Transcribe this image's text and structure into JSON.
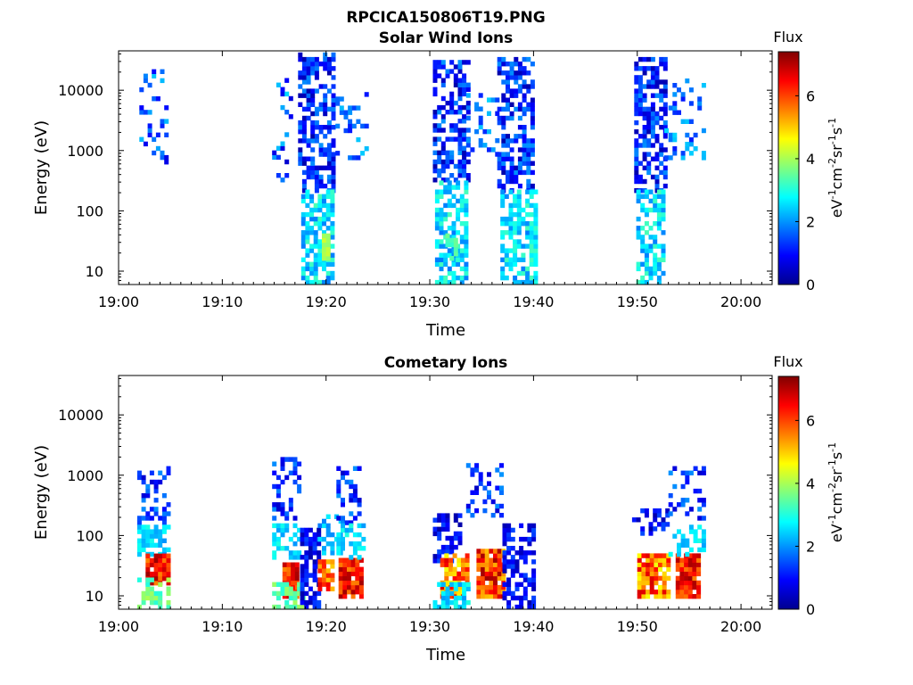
{
  "figure_title": "RPCICA150806T19.PNG",
  "colorbar": {
    "title": "Flux",
    "label_base": "eV",
    "label_parts": [
      "-1",
      "cm",
      "-2",
      "sr",
      "-1",
      "s",
      "-1"
    ],
    "ticks": [
      "0",
      "2",
      "4",
      "6"
    ],
    "range": [
      0,
      7.4
    ],
    "colormap": "jet"
  },
  "chart_data": [
    {
      "type": "heatmap",
      "title": "Solar Wind Ions",
      "xlabel": "Time",
      "ylabel": "Energy (eV)",
      "x_ticks": [
        "19:00",
        "19:10",
        "19:20",
        "19:30",
        "19:40",
        "19:50",
        "20:00"
      ],
      "y_ticks": [
        "10",
        "100",
        "1000",
        "10000"
      ],
      "y_scale": "log",
      "x_range_min": [
        0,
        63
      ],
      "y_range_eV": [
        6,
        45000
      ],
      "clusters": [
        {
          "t": [
            2.0,
            4.6
          ],
          "e": [
            500,
            20000
          ],
          "flux": [
            0.5,
            2.5
          ],
          "density": 0.25
        },
        {
          "t": [
            14.8,
            16.5
          ],
          "e": [
            300,
            15000
          ],
          "flux": [
            0.5,
            2.5
          ],
          "density": 0.25
        },
        {
          "t": [
            17.3,
            20.5
          ],
          "e": [
            200,
            40000
          ],
          "flux": [
            0.3,
            2.0
          ],
          "density": 0.55
        },
        {
          "t": [
            17.6,
            20.5
          ],
          "e": [
            6,
            200
          ],
          "flux": [
            1.8,
            3.3
          ],
          "density": 0.7
        },
        {
          "t": [
            19.6,
            20.2
          ],
          "e": [
            15,
            40
          ],
          "flux": [
            3.8,
            4.3
          ],
          "density": 0.9
        },
        {
          "t": [
            20.5,
            24.0
          ],
          "e": [
            700,
            8000
          ],
          "flux": [
            1.0,
            2.5
          ],
          "density": 0.2
        },
        {
          "t": [
            30.3,
            33.5
          ],
          "e": [
            300,
            30000
          ],
          "flux": [
            0.3,
            2.0
          ],
          "density": 0.55
        },
        {
          "t": [
            30.5,
            33.5
          ],
          "e": [
            6,
            300
          ],
          "flux": [
            1.8,
            3.3
          ],
          "density": 0.65
        },
        {
          "t": [
            31.5,
            32.5
          ],
          "e": [
            15,
            40
          ],
          "flux": [
            3.0,
            3.6
          ],
          "density": 0.6
        },
        {
          "t": [
            33.5,
            36.5
          ],
          "e": [
            800,
            10000
          ],
          "flux": [
            1.0,
            2.5
          ],
          "density": 0.2
        },
        {
          "t": [
            36.5,
            40.0
          ],
          "e": [
            200,
            30000
          ],
          "flux": [
            0.3,
            2.0
          ],
          "density": 0.6
        },
        {
          "t": [
            36.8,
            40.0
          ],
          "e": [
            6,
            200
          ],
          "flux": [
            1.8,
            3.3
          ],
          "density": 0.7
        },
        {
          "t": [
            49.7,
            52.6
          ],
          "e": [
            200,
            30000
          ],
          "flux": [
            0.3,
            2.0
          ],
          "density": 0.55
        },
        {
          "t": [
            49.9,
            52.6
          ],
          "e": [
            6,
            200
          ],
          "flux": [
            1.8,
            3.3
          ],
          "density": 0.6
        },
        {
          "t": [
            52.6,
            56.5
          ],
          "e": [
            700,
            15000
          ],
          "flux": [
            1.0,
            2.5
          ],
          "density": 0.25
        }
      ]
    },
    {
      "type": "heatmap",
      "title": "Cometary Ions",
      "xlabel": "Time",
      "ylabel": "Energy (eV)",
      "x_ticks": [
        "19:00",
        "19:10",
        "19:20",
        "19:30",
        "19:40",
        "19:50",
        "20:00"
      ],
      "y_ticks": [
        "10",
        "100",
        "1000",
        "10000"
      ],
      "y_scale": "log",
      "x_range_min": [
        0,
        63
      ],
      "y_range_eV": [
        6,
        45000
      ],
      "clusters": [
        {
          "t": [
            1.8,
            4.8
          ],
          "e": [
            150,
            1200
          ],
          "flux": [
            0.5,
            2.0
          ],
          "density": 0.3
        },
        {
          "t": [
            1.8,
            4.8
          ],
          "e": [
            45,
            150
          ],
          "flux": [
            2.0,
            3.0
          ],
          "density": 0.6
        },
        {
          "t": [
            2.6,
            4.8
          ],
          "e": [
            15,
            45
          ],
          "flux": [
            5.5,
            7.2
          ],
          "density": 0.9
        },
        {
          "t": [
            1.8,
            4.8
          ],
          "e": [
            6,
            20
          ],
          "flux": [
            3.0,
            4.2
          ],
          "density": 0.6
        },
        {
          "t": [
            14.8,
            17.5
          ],
          "e": [
            150,
            1700
          ],
          "flux": [
            0.5,
            2.0
          ],
          "density": 0.3
        },
        {
          "t": [
            14.8,
            17.5
          ],
          "e": [
            40,
            150
          ],
          "flux": [
            2.0,
            3.0
          ],
          "density": 0.5
        },
        {
          "t": [
            15.8,
            17.3
          ],
          "e": [
            9,
            35
          ],
          "flux": [
            5.5,
            7.2
          ],
          "density": 0.95
        },
        {
          "t": [
            14.8,
            17.8
          ],
          "e": [
            6,
            15
          ],
          "flux": [
            3.0,
            4.0
          ],
          "density": 0.6
        },
        {
          "t": [
            17.5,
            19.2
          ],
          "e": [
            6,
            120
          ],
          "flux": [
            0.3,
            1.5
          ],
          "density": 0.7
        },
        {
          "t": [
            19.2,
            20.6
          ],
          "e": [
            12,
            40
          ],
          "flux": [
            5.0,
            6.8
          ],
          "density": 0.85
        },
        {
          "t": [
            19.2,
            21.2
          ],
          "e": [
            40,
            200
          ],
          "flux": [
            1.8,
            2.8
          ],
          "density": 0.4
        },
        {
          "t": [
            21.0,
            23.2
          ],
          "e": [
            150,
            1300
          ],
          "flux": [
            0.5,
            2.0
          ],
          "density": 0.35
        },
        {
          "t": [
            21.2,
            23.2
          ],
          "e": [
            9,
            40
          ],
          "flux": [
            5.5,
            7.2
          ],
          "density": 0.95
        },
        {
          "t": [
            21.0,
            23.5
          ],
          "e": [
            40,
            150
          ],
          "flux": [
            2.0,
            3.0
          ],
          "density": 0.5
        },
        {
          "t": [
            30.3,
            33.0
          ],
          "e": [
            35,
            200
          ],
          "flux": [
            0.3,
            1.5
          ],
          "density": 0.5
        },
        {
          "t": [
            31.0,
            33.5
          ],
          "e": [
            9,
            50
          ],
          "flux": [
            4.5,
            6.8
          ],
          "density": 0.85
        },
        {
          "t": [
            30.3,
            33.5
          ],
          "e": [
            6,
            15
          ],
          "flux": [
            2.0,
            3.0
          ],
          "density": 0.5
        },
        {
          "t": [
            33.5,
            37.0
          ],
          "e": [
            200,
            1400
          ],
          "flux": [
            0.5,
            2.0
          ],
          "density": 0.3
        },
        {
          "t": [
            34.5,
            37.0
          ],
          "e": [
            9,
            55
          ],
          "flux": [
            5.0,
            7.2
          ],
          "density": 0.9
        },
        {
          "t": [
            37.0,
            40.0
          ],
          "e": [
            6,
            150
          ],
          "flux": [
            0.3,
            1.5
          ],
          "density": 0.6
        },
        {
          "t": [
            49.5,
            52.8
          ],
          "e": [
            100,
            250
          ],
          "flux": [
            0.3,
            1.5
          ],
          "density": 0.4
        },
        {
          "t": [
            50.0,
            52.8
          ],
          "e": [
            9,
            50
          ],
          "flux": [
            4.5,
            6.8
          ],
          "density": 0.85
        },
        {
          "t": [
            53.0,
            56.5
          ],
          "e": [
            150,
            1300
          ],
          "flux": [
            0.5,
            2.0
          ],
          "density": 0.3
        },
        {
          "t": [
            53.7,
            55.8
          ],
          "e": [
            9,
            45
          ],
          "flux": [
            5.5,
            7.2
          ],
          "density": 0.9
        },
        {
          "t": [
            53.0,
            56.5
          ],
          "e": [
            45,
            150
          ],
          "flux": [
            2.0,
            3.0
          ],
          "density": 0.5
        }
      ]
    }
  ]
}
